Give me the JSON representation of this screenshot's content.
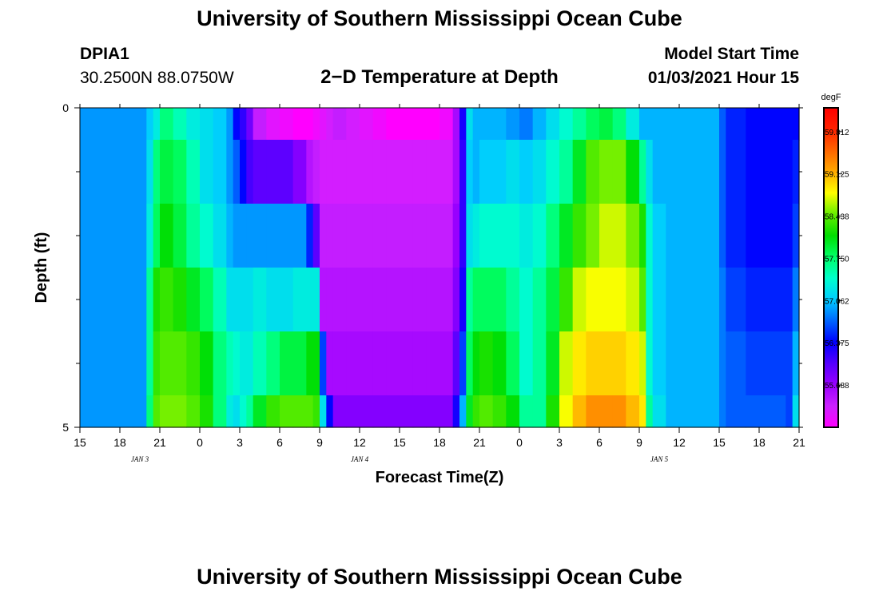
{
  "header": {
    "top_title": "University of Southern Mississippi Ocean Cube",
    "station": "DPIA1",
    "coords": "30.2500N 88.0750W",
    "plot_title": "2−D Temperature at Depth",
    "model_label": "Model Start Time",
    "model_time": "01/03/2021 Hour 15",
    "bottom_title": "University of Southern Mississippi Ocean Cube"
  },
  "chart_data": {
    "type": "heatmap",
    "title": "2−D Temperature at Depth",
    "xlabel": "Forecast Time(Z)",
    "ylabel": "Depth (ft)",
    "x_unit": "hours from model start (01/03/2021 15Z)",
    "x_range": [
      0,
      54
    ],
    "x_ticks": [
      {
        "h": 0,
        "label": "15"
      },
      {
        "h": 3,
        "label": "18"
      },
      {
        "h": 6,
        "label": "21"
      },
      {
        "h": 9,
        "label": "0"
      },
      {
        "h": 12,
        "label": "3"
      },
      {
        "h": 15,
        "label": "6"
      },
      {
        "h": 18,
        "label": "9"
      },
      {
        "h": 21,
        "label": "12"
      },
      {
        "h": 24,
        "label": "15"
      },
      {
        "h": 27,
        "label": "18"
      },
      {
        "h": 30,
        "label": "21"
      },
      {
        "h": 33,
        "label": "0"
      },
      {
        "h": 36,
        "label": "3"
      },
      {
        "h": 39,
        "label": "6"
      },
      {
        "h": 42,
        "label": "9"
      },
      {
        "h": 45,
        "label": "12"
      },
      {
        "h": 48,
        "label": "15"
      },
      {
        "h": 51,
        "label": "18"
      },
      {
        "h": 54,
        "label": "21"
      }
    ],
    "date_labels": [
      {
        "h": 4.5,
        "label": "JAN 3"
      },
      {
        "h": 21,
        "label": "JAN 4"
      },
      {
        "h": 43.5,
        "label": "JAN 5"
      }
    ],
    "y_range": [
      0,
      5
    ],
    "y_tick_labels": [
      {
        "v": 0,
        "label": "0"
      },
      {
        "v": 5,
        "label": "5"
      }
    ],
    "y_minor_ticks": [
      1,
      2,
      3,
      4
    ],
    "depth_bands": [
      [
        0,
        0.5
      ],
      [
        0.5,
        1.5
      ],
      [
        1.5,
        2.5
      ],
      [
        2.5,
        3.5
      ],
      [
        3.5,
        4.5
      ],
      [
        4.5,
        5
      ]
    ],
    "x_hours": [
      0,
      4,
      5,
      5.5,
      6,
      7,
      8,
      9,
      10,
      11,
      11.5,
      12,
      12.5,
      13,
      14,
      15,
      16,
      17,
      17.5,
      18,
      18.5,
      19,
      20,
      21,
      22,
      23,
      24,
      25,
      26,
      27,
      28,
      28.5,
      29,
      29.5,
      30,
      31,
      32,
      33,
      34,
      35,
      36,
      37,
      38,
      39,
      40,
      41,
      42,
      42.5,
      43,
      44,
      48,
      48.5,
      50,
      53,
      53.5
    ],
    "colorbar": {
      "unit": "degF",
      "min": 55.0,
      "max": 60.2,
      "tick_values": [
        59.812,
        59.125,
        58.438,
        57.75,
        57.062,
        56.375,
        55.688
      ],
      "tick_labels": [
        "59.812",
        "59.125",
        "58.438",
        "57.750",
        "57.062",
        "56.375",
        "55.688"
      ],
      "colors": [
        "#ff00ff",
        "#cc22ff",
        "#9900ff",
        "#5500ff",
        "#0000ff",
        "#0066ff",
        "#00ccff",
        "#00ffcc",
        "#00ff66",
        "#00dd00",
        "#66ee00",
        "#ffff00",
        "#ffaa00",
        "#ff6600",
        "#ff2200",
        "#ff0000"
      ]
    },
    "values": [
      [
        56.9,
        56.9,
        57.1,
        57.3,
        57.7,
        57.5,
        57.3,
        57.2,
        57.1,
        56.9,
        56.4,
        56.2,
        55.9,
        55.4,
        55.2,
        55.1,
        55.0,
        55.0,
        55.1,
        55.2,
        55.3,
        55.4,
        55.3,
        55.2,
        55.1,
        55.0,
        55.0,
        55.0,
        55.0,
        55.1,
        55.6,
        56.3,
        57.2,
        57.0,
        57.0,
        57.0,
        56.9,
        56.8,
        57.0,
        57.2,
        57.4,
        57.6,
        57.8,
        57.9,
        57.7,
        57.3,
        57.0,
        57.0,
        57.0,
        57.0,
        56.7,
        56.5,
        56.4,
        56.4,
        56.4
      ],
      [
        56.9,
        56.9,
        57.2,
        57.7,
        57.9,
        57.8,
        57.5,
        57.2,
        57.1,
        56.9,
        56.7,
        56.4,
        56.1,
        56.0,
        56.0,
        56.0,
        55.8,
        55.5,
        55.4,
        55.3,
        55.3,
        55.3,
        55.3,
        55.3,
        55.3,
        55.3,
        55.3,
        55.3,
        55.3,
        55.3,
        55.6,
        56.2,
        57.1,
        57.0,
        57.1,
        57.1,
        57.2,
        57.1,
        57.2,
        57.4,
        57.6,
        58.0,
        58.4,
        58.5,
        58.5,
        58.1,
        57.6,
        57.2,
        57.0,
        57.0,
        56.7,
        56.5,
        56.4,
        56.4,
        56.5
      ],
      [
        56.9,
        56.9,
        57.3,
        57.8,
        58.1,
        57.9,
        57.6,
        57.4,
        57.2,
        57.0,
        56.9,
        56.9,
        56.9,
        56.9,
        56.9,
        56.9,
        56.9,
        56.5,
        56.0,
        55.4,
        55.4,
        55.4,
        55.4,
        55.4,
        55.4,
        55.4,
        55.4,
        55.4,
        55.4,
        55.4,
        55.7,
        56.2,
        57.2,
        57.3,
        57.4,
        57.4,
        57.4,
        57.3,
        57.4,
        57.7,
        58.0,
        58.3,
        58.5,
        58.7,
        58.7,
        58.5,
        58.2,
        57.4,
        57.1,
        57.0,
        56.7,
        56.5,
        56.4,
        56.4,
        56.6
      ],
      [
        56.9,
        56.9,
        57.6,
        58.2,
        58.3,
        58.2,
        58.0,
        57.8,
        57.5,
        57.2,
        57.2,
        57.2,
        57.2,
        57.3,
        57.2,
        57.2,
        57.3,
        57.3,
        57.3,
        55.5,
        55.5,
        55.5,
        55.5,
        55.5,
        55.5,
        55.5,
        55.5,
        55.5,
        55.5,
        55.5,
        55.8,
        56.3,
        57.6,
        57.8,
        57.8,
        57.8,
        57.6,
        57.4,
        57.6,
        57.9,
        58.3,
        58.7,
        58.8,
        58.8,
        58.8,
        58.7,
        58.4,
        57.4,
        57.1,
        57.0,
        56.8,
        56.6,
        56.5,
        56.5,
        56.8
      ],
      [
        56.9,
        56.9,
        57.6,
        58.3,
        58.4,
        58.4,
        58.3,
        58.1,
        57.7,
        57.5,
        57.4,
        57.3,
        57.3,
        57.5,
        57.7,
        57.9,
        57.9,
        58.1,
        58.1,
        56.6,
        55.6,
        55.6,
        55.6,
        55.6,
        55.6,
        55.6,
        55.6,
        55.6,
        55.6,
        55.6,
        56.0,
        56.6,
        57.8,
        58.1,
        58.2,
        58.1,
        57.8,
        57.4,
        57.6,
        58.0,
        58.7,
        58.9,
        59.0,
        59.0,
        59.0,
        58.9,
        58.7,
        57.4,
        57.1,
        57.0,
        56.8,
        56.7,
        56.6,
        56.6,
        57.0
      ],
      [
        56.9,
        56.9,
        57.7,
        58.4,
        58.5,
        58.5,
        58.4,
        58.2,
        57.7,
        57.3,
        57.2,
        57.4,
        57.6,
        58.0,
        58.3,
        58.4,
        58.4,
        58.4,
        58.3,
        57.2,
        56.4,
        55.8,
        55.8,
        55.8,
        55.8,
        55.8,
        55.8,
        55.8,
        55.8,
        55.8,
        56.3,
        57.0,
        58.0,
        58.3,
        58.4,
        58.3,
        58.1,
        57.6,
        57.6,
        58.2,
        58.8,
        59.1,
        59.3,
        59.3,
        59.3,
        59.1,
        58.9,
        57.6,
        57.2,
        57.0,
        56.8,
        56.7,
        56.7,
        56.6,
        57.2
      ]
    ]
  }
}
